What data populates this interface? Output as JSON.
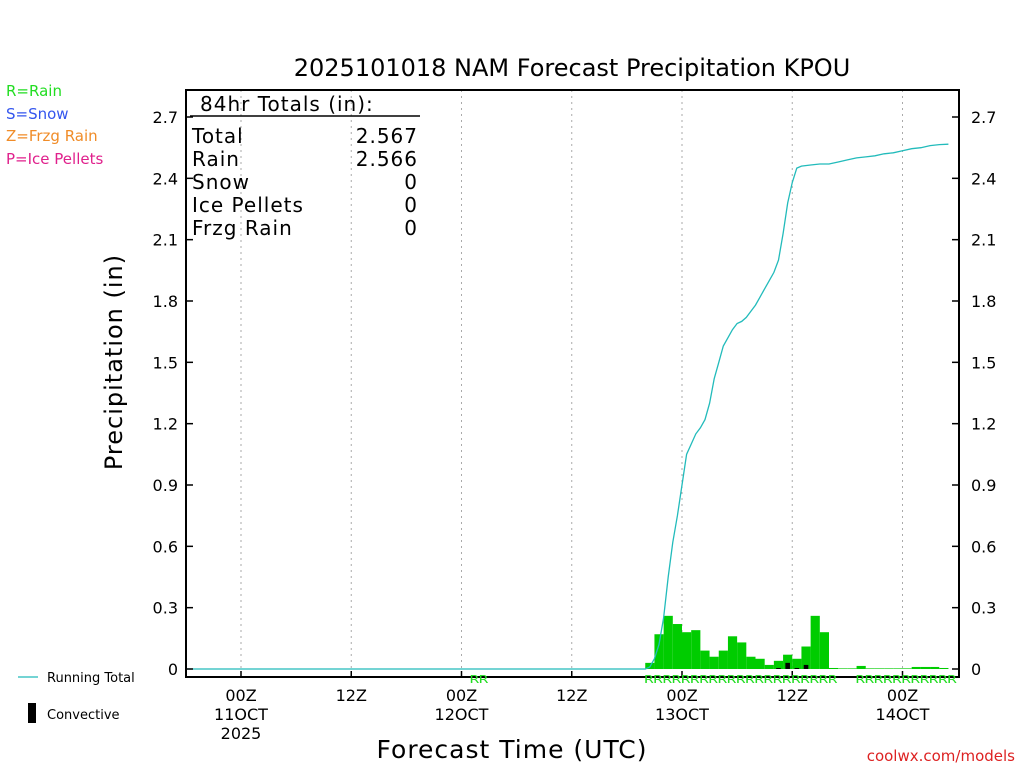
{
  "chart_data": {
    "type": "bar",
    "title": "2025101018 NAM Forecast Precipitation KPOU",
    "xlabel": "Forecast Time (UTC)",
    "ylabel": "Precipitation (in)",
    "ylim": [
      0,
      2.8
    ],
    "yticks": [
      0,
      0.3,
      0.6,
      0.9,
      1.2,
      1.5,
      1.8,
      2.1,
      2.4,
      2.7
    ],
    "ytick_labels": [
      "0",
      "0.3",
      "0.6",
      "0.9",
      "1.2",
      "1.5",
      "1.8",
      "2.1",
      "2.4",
      "2.7"
    ],
    "x_range_hours": [
      -6,
      78
    ],
    "x_unit": "forecast hours since 00Z 11OCT 2025",
    "x_ticks": [
      {
        "hour": 0,
        "line1": "00Z",
        "line2": "11OCT",
        "line3": "2025"
      },
      {
        "hour": 12,
        "line1": "12Z",
        "line2": "",
        "line3": ""
      },
      {
        "hour": 24,
        "line1": "00Z",
        "line2": "12OCT",
        "line3": ""
      },
      {
        "hour": 36,
        "line1": "12Z",
        "line2": "",
        "line3": ""
      },
      {
        "hour": 48,
        "line1": "00Z",
        "line2": "13OCT",
        "line3": ""
      },
      {
        "hour": 60,
        "line1": "12Z",
        "line2": "",
        "line3": ""
      },
      {
        "hour": 72,
        "line1": "00Z",
        "line2": "14OCT",
        "line3": ""
      }
    ],
    "precip_type_legend": [
      {
        "label": "R=Rain",
        "color": "#22dd22"
      },
      {
        "label": "S=Snow",
        "color": "#3355ee"
      },
      {
        "label": "Z=Frzg Rain",
        "color": "#f08c28"
      },
      {
        "label": "P=Ice Pellets",
        "color": "#e0208c"
      }
    ],
    "totals": {
      "heading": "84hr Totals (in):",
      "rows": [
        {
          "label": "Total",
          "value": "2.567"
        },
        {
          "label": "Rain",
          "value": "2.566"
        },
        {
          "label": "Snow",
          "value": "0"
        },
        {
          "label": "Ice Pellets",
          "value": "0"
        },
        {
          "label": "Frzg Rain",
          "value": "0"
        }
      ]
    },
    "bar_series": {
      "name": "Hourly Rain",
      "color": "#00cc00",
      "hours": [
        45,
        46,
        47,
        48,
        49,
        50,
        51,
        52,
        53,
        54,
        55,
        56,
        57,
        58,
        59,
        60,
        61,
        62,
        63,
        64,
        65,
        66,
        67,
        68,
        69,
        70,
        71,
        72,
        73,
        74,
        75,
        76,
        77
      ],
      "values": [
        0.03,
        0.17,
        0.26,
        0.22,
        0.18,
        0.19,
        0.09,
        0.06,
        0.09,
        0.16,
        0.13,
        0.06,
        0.05,
        0.02,
        0.04,
        0.07,
        0.05,
        0.11,
        0.26,
        0.18,
        0.005,
        0.003,
        0.003,
        0.015,
        0.003,
        0.003,
        0.003,
        0.003,
        0.003,
        0.01,
        0.01,
        0.01,
        0.005
      ]
    },
    "convective_series": {
      "name": "Convective",
      "color": "#000000",
      "hours": [
        59,
        60,
        61,
        62
      ],
      "values": [
        0.005,
        0.03,
        0.005,
        0.02
      ]
    },
    "line_series": {
      "name": "Running Total",
      "color": "#22bbbb",
      "points": [
        [
          -6,
          0
        ],
        [
          44,
          0
        ],
        [
          44.5,
          0.01
        ],
        [
          45,
          0.05
        ],
        [
          45.5,
          0.12
        ],
        [
          46,
          0.25
        ],
        [
          46.5,
          0.45
        ],
        [
          47,
          0.62
        ],
        [
          47.5,
          0.75
        ],
        [
          48,
          0.9
        ],
        [
          48.5,
          1.05
        ],
        [
          49,
          1.1
        ],
        [
          49.5,
          1.15
        ],
        [
          50,
          1.18
        ],
        [
          50.5,
          1.22
        ],
        [
          51,
          1.3
        ],
        [
          51.5,
          1.42
        ],
        [
          52,
          1.5
        ],
        [
          52.5,
          1.58
        ],
        [
          53,
          1.62
        ],
        [
          53.5,
          1.66
        ],
        [
          54,
          1.69
        ],
        [
          54.5,
          1.7
        ],
        [
          55,
          1.72
        ],
        [
          55.5,
          1.75
        ],
        [
          56,
          1.78
        ],
        [
          56.5,
          1.82
        ],
        [
          57,
          1.86
        ],
        [
          57.5,
          1.9
        ],
        [
          58,
          1.94
        ],
        [
          58.5,
          2.0
        ],
        [
          59,
          2.13
        ],
        [
          59.5,
          2.28
        ],
        [
          60,
          2.38
        ],
        [
          60.5,
          2.45
        ],
        [
          61,
          2.46
        ],
        [
          62,
          2.465
        ],
        [
          63,
          2.47
        ],
        [
          64,
          2.47
        ],
        [
          65,
          2.48
        ],
        [
          66,
          2.49
        ],
        [
          67,
          2.5
        ],
        [
          68,
          2.505
        ],
        [
          69,
          2.51
        ],
        [
          70,
          2.52
        ],
        [
          71,
          2.525
        ],
        [
          72,
          2.535
        ],
        [
          73,
          2.545
        ],
        [
          74,
          2.55
        ],
        [
          75,
          2.56
        ],
        [
          76,
          2.565
        ],
        [
          77,
          2.567
        ]
      ]
    },
    "type_markers": [
      {
        "text": "RR",
        "start_hour": 25,
        "color": "#22dd22"
      },
      {
        "text": "RRRRRRRRRRRRRRRRRRRRR",
        "start_hour": 44,
        "color": "#22dd22"
      },
      {
        "text": "RRRRRRRRRRR",
        "start_hour": 67,
        "color": "#22dd22"
      }
    ],
    "bottom_legend": {
      "running_total_label": "Running Total",
      "convective_label": "Convective"
    },
    "credit": "coolwx.com/models"
  }
}
